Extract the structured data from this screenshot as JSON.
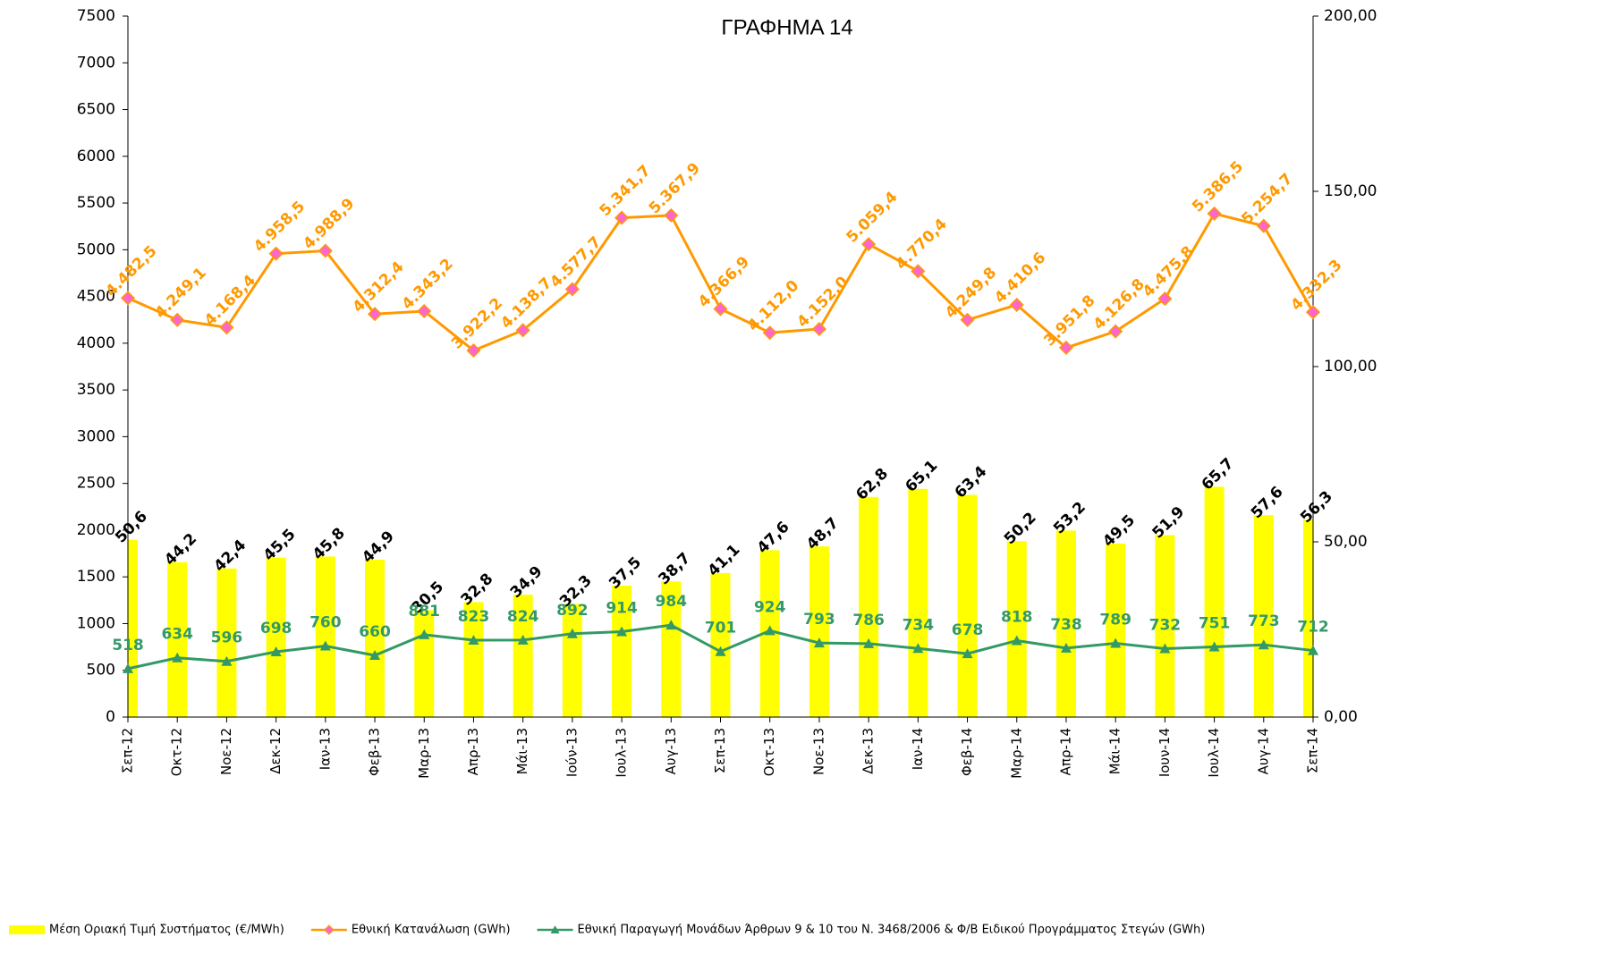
{
  "chart_data": {
    "type": "bar",
    "title": "ΓΡΑΦΗΜΑ 14",
    "categories": [
      "Σεπ-12",
      "Οκτ-12",
      "Νοε-12",
      "Δεκ-12",
      "Ιαν-13",
      "Φεβ-13",
      "Μαρ-13",
      "Απρ-13",
      "Μάι-13",
      "Ιούν-13",
      "Ιουλ-13",
      "Αυγ-13",
      "Σεπ-13",
      "Οκτ-13",
      "Νοε-13",
      "Δεκ-13",
      "Ιαν-14",
      "Φεβ-14",
      "Μαρ-14",
      "Απρ-14",
      "Μάι-14",
      "Ιουν-14",
      "Ιουλ-14",
      "Αυγ-14",
      "Σεπ-14"
    ],
    "series": [
      {
        "name": "Μέση Οριακή Τιμή Συστήματος (€/MWh)",
        "type": "bar",
        "axis": "y2",
        "color": "#ffff00",
        "label_color": "#000000",
        "values": [
          50.6,
          44.2,
          42.4,
          45.5,
          45.8,
          44.9,
          30.5,
          32.8,
          34.9,
          32.3,
          37.5,
          38.7,
          41.1,
          47.6,
          48.7,
          62.8,
          65.1,
          63.4,
          50.2,
          53.2,
          49.5,
          51.9,
          65.7,
          57.6,
          56.3
        ],
        "value_labels": [
          "50,6",
          "44,2",
          "42,4",
          "45,5",
          "45,8",
          "44,9",
          "30,5",
          "32,8",
          "34,9",
          "32,3",
          "37,5",
          "38,7",
          "41,1",
          "47,6",
          "48,7",
          "62,8",
          "65,1",
          "63,4",
          "50,2",
          "53,2",
          "49,5",
          "51,9",
          "65,7",
          "57,6",
          "56,3"
        ]
      },
      {
        "name": "Εθνική Κατανάλωση (GWh)",
        "type": "line",
        "marker": "diamond",
        "color": "#ff9900",
        "marker_color": "#ff66cc",
        "label_color": "#ff9900",
        "values": [
          4482.5,
          4249.1,
          4168.4,
          4958.5,
          4988.9,
          4312.4,
          4343.2,
          3922.2,
          4138.7,
          4577.7,
          5341.7,
          5367.9,
          4366.9,
          4112.0,
          4152.0,
          5059.4,
          4770.4,
          4249.8,
          4410.6,
          3951.8,
          4126.8,
          4475.8,
          5386.5,
          5254.7,
          4332.3
        ],
        "value_labels": [
          "4.482,5",
          "4.249,1",
          "4.168,4",
          "4.958,5",
          "4.988,9",
          "4.312,4",
          "4.343,2",
          "3.922,2",
          "4.138,7",
          "4.577,7",
          "5.341,7",
          "5.367,9",
          "4.366,9",
          "4.112,0",
          "4.152,0",
          "5.059,4",
          "4.770,4",
          "4.249,8",
          "4.410,6",
          "3.951,8",
          "4.126,8",
          "4.475,8",
          "5.386,5",
          "5.254,7",
          "4.332,3"
        ]
      },
      {
        "name": "Εθνική Παραγωγή Μονάδων Άρθρων 9 & 10 του Ν. 3468/2006 & Φ/Β Ειδικού Προγράμματος Στεγών (GWh)",
        "type": "line",
        "marker": "triangle",
        "color": "#339966",
        "marker_color": "#339966",
        "label_color": "#339966",
        "values": [
          518,
          634,
          596,
          698,
          760,
          660,
          881,
          823,
          824,
          892,
          914,
          984,
          701,
          924,
          793,
          786,
          734,
          678,
          818,
          738,
          789,
          732,
          751,
          773,
          712
        ]
      }
    ],
    "ylim": [
      0,
      7500
    ],
    "yticks": [
      0,
      500,
      1000,
      1500,
      2000,
      2500,
      3000,
      3500,
      4000,
      4500,
      5000,
      5500,
      6000,
      6500,
      7000,
      7500
    ],
    "y2lim": [
      0,
      200
    ],
    "y2ticks": [
      {
        "value": 0,
        "label": "0,00"
      },
      {
        "value": 50,
        "label": "50,00"
      },
      {
        "value": 100,
        "label": "100,00"
      },
      {
        "value": 150,
        "label": "150,00"
      },
      {
        "value": 200,
        "label": "200,00"
      }
    ],
    "legend": "bottom"
  }
}
